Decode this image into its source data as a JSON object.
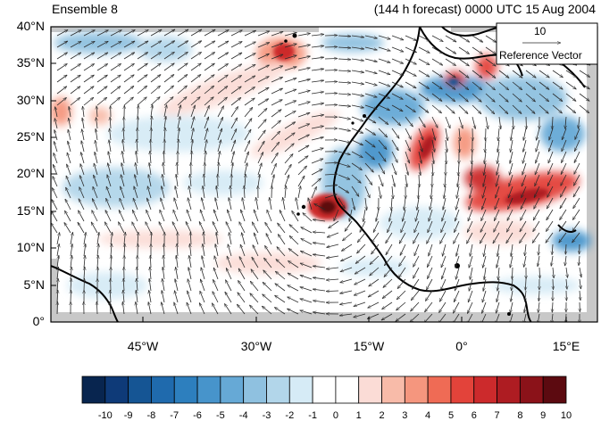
{
  "panel": {
    "title_left": "Ensemble 8",
    "title_right": "(144 h forecast) 0000 UTC 15 Aug 2004"
  },
  "axes": {
    "lat_labels": [
      "40°N",
      "35°N",
      "30°N",
      "25°N",
      "20°N",
      "15°N",
      "10°N",
      "5°N",
      "0°"
    ],
    "lon_labels": [
      "45°W",
      "30°W",
      "15°W",
      "0°",
      "15°E"
    ]
  },
  "reference_vector": {
    "value": "10",
    "label": "Reference Vector"
  },
  "colorbar": {
    "labels": [
      "-10",
      "-9",
      "-8",
      "-7",
      "-6",
      "-5",
      "-4",
      "-3",
      "-2",
      "-1",
      "0",
      "1",
      "2",
      "3",
      "4",
      "5",
      "6",
      "7",
      "8",
      "9",
      "10"
    ],
    "colors": [
      "#08254f",
      "#0e3a78",
      "#155594",
      "#1f6aad",
      "#2d7fbe",
      "#4794cb",
      "#66a9d6",
      "#8fc1e0",
      "#b2d6ea",
      "#d6ebf6",
      "#ffffff",
      "#ffffff",
      "#fbdcd6",
      "#f8bba9",
      "#f5967e",
      "#ef6b55",
      "#e3433a",
      "#cc2a2c",
      "#ae1c22",
      "#8b1219",
      "#5c0a10"
    ]
  },
  "colors": {
    "land_outline": "#000000",
    "missing": "#c8c8c8",
    "vector": "#2a2a2a"
  }
}
